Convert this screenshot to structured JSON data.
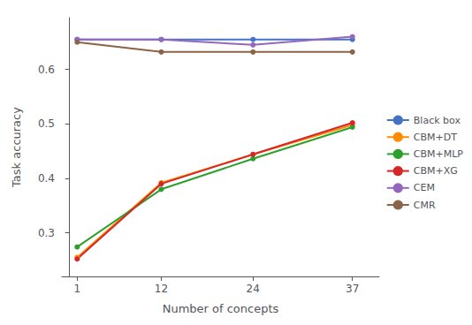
{
  "chart_data": {
    "type": "line",
    "x": [
      1,
      12,
      24,
      37
    ],
    "series": [
      {
        "name": "Black box",
        "color": "#4472C4",
        "marker": "circle",
        "values": [
          0.655,
          0.655,
          0.655,
          0.655
        ]
      },
      {
        "name": "CBM+DT",
        "color": "#FF8C00",
        "marker": "circle",
        "values": [
          0.255,
          0.392,
          0.444,
          0.498
        ]
      },
      {
        "name": "CBM+MLP",
        "color": "#2ca02c",
        "marker": "circle",
        "values": [
          0.274,
          0.38,
          0.436,
          0.494
        ]
      },
      {
        "name": "CBM+XG",
        "color": "#d62728",
        "marker": "circle",
        "values": [
          0.252,
          0.39,
          0.444,
          0.502
        ]
      },
      {
        "name": "CEM",
        "color": "#9467bd",
        "marker": "circle",
        "values": [
          0.655,
          0.655,
          0.645,
          0.66
        ]
      },
      {
        "name": "CMR",
        "color": "#8B6347",
        "marker": "circle",
        "values": [
          0.65,
          0.632,
          0.632,
          0.632
        ]
      }
    ],
    "xlabel": "Number of concepts",
    "ylabel": "Task accuracy",
    "xlim": [
      -1,
      40.5
    ],
    "ylim": [
      0.22,
      0.695
    ],
    "xticks": [
      1,
      12,
      24,
      37
    ],
    "yticks": [
      0.3,
      0.4,
      0.5,
      0.6
    ],
    "grid": false,
    "legend": "right"
  }
}
